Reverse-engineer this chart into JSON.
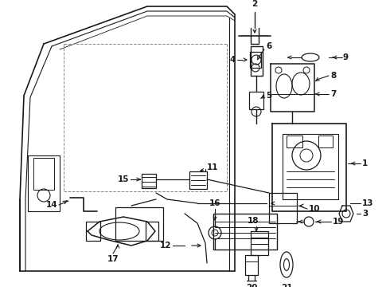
{
  "bg_color": "#ffffff",
  "line_color": "#1a1a1a",
  "fig_width": 4.9,
  "fig_height": 3.6,
  "dpi": 100,
  "font_size": 7.5,
  "font_weight": "bold"
}
